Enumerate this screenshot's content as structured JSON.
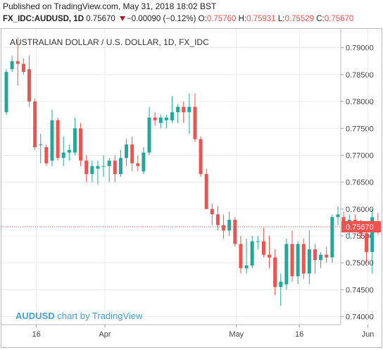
{
  "header": {
    "published": "Published on TradingView.com, May 31, 2018 18:02 BST",
    "symbol": "FX_IDC:AUDUSD, 1D",
    "last": "0.75670",
    "change": "−0.00090 (−0.12%)",
    "o_label": "O:",
    "o_value": "0.75760",
    "h_label": "H:",
    "h_value": "0.75931",
    "l_label": "L:",
    "l_value": "0.75529",
    "c_label": "C:",
    "c_value": "0.75670"
  },
  "watermark": {
    "ticker": "AUDUSD",
    "rest": " chart by TradingView"
  },
  "colors": {
    "up": "#26a69a",
    "down": "#ef5350",
    "price_line": "#ef5350",
    "grid": "#ececec",
    "axis_text": "#444444",
    "title_text": "#333333"
  },
  "chart_data": {
    "type": "candlestick",
    "title": "AUSTRALIAN DOLLAR / U.S. DOLLAR, 1D, FX_IDC",
    "ylim": [
      0.7385,
      0.7935
    ],
    "y_ticks": [
      "0.79000",
      "0.78500",
      "0.78000",
      "0.77500",
      "0.77000",
      "0.76500",
      "0.76000",
      "0.75500",
      "0.75000",
      "0.74500",
      "0.74000"
    ],
    "x_ticks": [
      {
        "label": "16",
        "index": 5
      },
      {
        "label": "Apr",
        "index": 17
      },
      {
        "label": "May",
        "index": 40
      },
      {
        "label": "16",
        "index": 51
      },
      {
        "label": "Jun",
        "index": 63
      }
    ],
    "last_price": "0.75670",
    "last_value": 0.7567,
    "candles": [
      {
        "o": 0.778,
        "h": 0.786,
        "l": 0.7775,
        "c": 0.7855
      },
      {
        "o": 0.786,
        "h": 0.7885,
        "l": 0.7855,
        "c": 0.7875
      },
      {
        "o": 0.7875,
        "h": 0.792,
        "l": 0.783,
        "c": 0.787
      },
      {
        "o": 0.787,
        "h": 0.788,
        "l": 0.785,
        "c": 0.7855
      },
      {
        "o": 0.786,
        "h": 0.7885,
        "l": 0.779,
        "c": 0.78
      },
      {
        "o": 0.78,
        "h": 0.7805,
        "l": 0.771,
        "c": 0.7715
      },
      {
        "o": 0.772,
        "h": 0.774,
        "l": 0.7685,
        "c": 0.772
      },
      {
        "o": 0.7715,
        "h": 0.772,
        "l": 0.768,
        "c": 0.7685
      },
      {
        "o": 0.769,
        "h": 0.7785,
        "l": 0.768,
        "c": 0.7765
      },
      {
        "o": 0.7765,
        "h": 0.777,
        "l": 0.769,
        "c": 0.7695
      },
      {
        "o": 0.7695,
        "h": 0.7735,
        "l": 0.768,
        "c": 0.7705
      },
      {
        "o": 0.7705,
        "h": 0.772,
        "l": 0.769,
        "c": 0.771
      },
      {
        "o": 0.7705,
        "h": 0.777,
        "l": 0.77,
        "c": 0.775
      },
      {
        "o": 0.775,
        "h": 0.776,
        "l": 0.768,
        "c": 0.769
      },
      {
        "o": 0.769,
        "h": 0.77,
        "l": 0.765,
        "c": 0.7665
      },
      {
        "o": 0.7665,
        "h": 0.769,
        "l": 0.765,
        "c": 0.768
      },
      {
        "o": 0.7675,
        "h": 0.769,
        "l": 0.7645,
        "c": 0.768
      },
      {
        "o": 0.768,
        "h": 0.77,
        "l": 0.766,
        "c": 0.768
      },
      {
        "o": 0.768,
        "h": 0.7695,
        "l": 0.765,
        "c": 0.769
      },
      {
        "o": 0.769,
        "h": 0.77,
        "l": 0.765,
        "c": 0.7665
      },
      {
        "o": 0.7665,
        "h": 0.771,
        "l": 0.766,
        "c": 0.7695
      },
      {
        "o": 0.7695,
        "h": 0.773,
        "l": 0.768,
        "c": 0.772
      },
      {
        "o": 0.772,
        "h": 0.7735,
        "l": 0.767,
        "c": 0.7685
      },
      {
        "o": 0.7685,
        "h": 0.77,
        "l": 0.767,
        "c": 0.768
      },
      {
        "o": 0.767,
        "h": 0.7715,
        "l": 0.7665,
        "c": 0.7705
      },
      {
        "o": 0.7705,
        "h": 0.779,
        "l": 0.77,
        "c": 0.777
      },
      {
        "o": 0.777,
        "h": 0.778,
        "l": 0.7755,
        "c": 0.7765
      },
      {
        "o": 0.776,
        "h": 0.7775,
        "l": 0.775,
        "c": 0.777
      },
      {
        "o": 0.7765,
        "h": 0.7775,
        "l": 0.775,
        "c": 0.777
      },
      {
        "o": 0.7765,
        "h": 0.781,
        "l": 0.776,
        "c": 0.778
      },
      {
        "o": 0.778,
        "h": 0.7795,
        "l": 0.776,
        "c": 0.779
      },
      {
        "o": 0.779,
        "h": 0.78,
        "l": 0.776,
        "c": 0.778
      },
      {
        "o": 0.778,
        "h": 0.7815,
        "l": 0.774,
        "c": 0.779
      },
      {
        "o": 0.779,
        "h": 0.7815,
        "l": 0.7725,
        "c": 0.773
      },
      {
        "o": 0.773,
        "h": 0.7735,
        "l": 0.766,
        "c": 0.7665
      },
      {
        "o": 0.7665,
        "h": 0.7675,
        "l": 0.76,
        "c": 0.76
      },
      {
        "o": 0.76,
        "h": 0.761,
        "l": 0.757,
        "c": 0.759
      },
      {
        "o": 0.759,
        "h": 0.7605,
        "l": 0.756,
        "c": 0.757
      },
      {
        "o": 0.757,
        "h": 0.759,
        "l": 0.7545,
        "c": 0.756
      },
      {
        "o": 0.756,
        "h": 0.7595,
        "l": 0.755,
        "c": 0.758
      },
      {
        "o": 0.758,
        "h": 0.7585,
        "l": 0.753,
        "c": 0.7535
      },
      {
        "o": 0.7535,
        "h": 0.755,
        "l": 0.748,
        "c": 0.749
      },
      {
        "o": 0.749,
        "h": 0.7545,
        "l": 0.748,
        "c": 0.7495
      },
      {
        "o": 0.7495,
        "h": 0.755,
        "l": 0.749,
        "c": 0.754
      },
      {
        "o": 0.754,
        "h": 0.755,
        "l": 0.7525,
        "c": 0.754
      },
      {
        "o": 0.754,
        "h": 0.7565,
        "l": 0.751,
        "c": 0.7515
      },
      {
        "o": 0.7515,
        "h": 0.755,
        "l": 0.749,
        "c": 0.751
      },
      {
        "o": 0.751,
        "h": 0.7525,
        "l": 0.744,
        "c": 0.7455
      },
      {
        "o": 0.7455,
        "h": 0.748,
        "l": 0.742,
        "c": 0.7465
      },
      {
        "o": 0.746,
        "h": 0.7545,
        "l": 0.745,
        "c": 0.7535
      },
      {
        "o": 0.7535,
        "h": 0.756,
        "l": 0.7465,
        "c": 0.7475
      },
      {
        "o": 0.7475,
        "h": 0.754,
        "l": 0.746,
        "c": 0.7535
      },
      {
        "o": 0.7535,
        "h": 0.7545,
        "l": 0.747,
        "c": 0.748
      },
      {
        "o": 0.748,
        "h": 0.756,
        "l": 0.746,
        "c": 0.7525
      },
      {
        "o": 0.7525,
        "h": 0.7535,
        "l": 0.748,
        "c": 0.7505
      },
      {
        "o": 0.7505,
        "h": 0.752,
        "l": 0.749,
        "c": 0.7515
      },
      {
        "o": 0.7515,
        "h": 0.753,
        "l": 0.75,
        "c": 0.751
      },
      {
        "o": 0.751,
        "h": 0.759,
        "l": 0.75,
        "c": 0.7585
      },
      {
        "o": 0.7585,
        "h": 0.7605,
        "l": 0.757,
        "c": 0.759
      },
      {
        "o": 0.7585,
        "h": 0.7595,
        "l": 0.756,
        "c": 0.757
      },
      {
        "o": 0.757,
        "h": 0.759,
        "l": 0.7545,
        "c": 0.758
      },
      {
        "o": 0.758,
        "h": 0.759,
        "l": 0.757,
        "c": 0.7575
      },
      {
        "o": 0.7575,
        "h": 0.758,
        "l": 0.7545,
        "c": 0.7555
      },
      {
        "o": 0.7555,
        "h": 0.757,
        "l": 0.75,
        "c": 0.752
      },
      {
        "o": 0.752,
        "h": 0.76,
        "l": 0.748,
        "c": 0.7585
      },
      {
        "o": 0.7576,
        "h": 0.7593,
        "l": 0.7553,
        "c": 0.7567
      }
    ]
  }
}
